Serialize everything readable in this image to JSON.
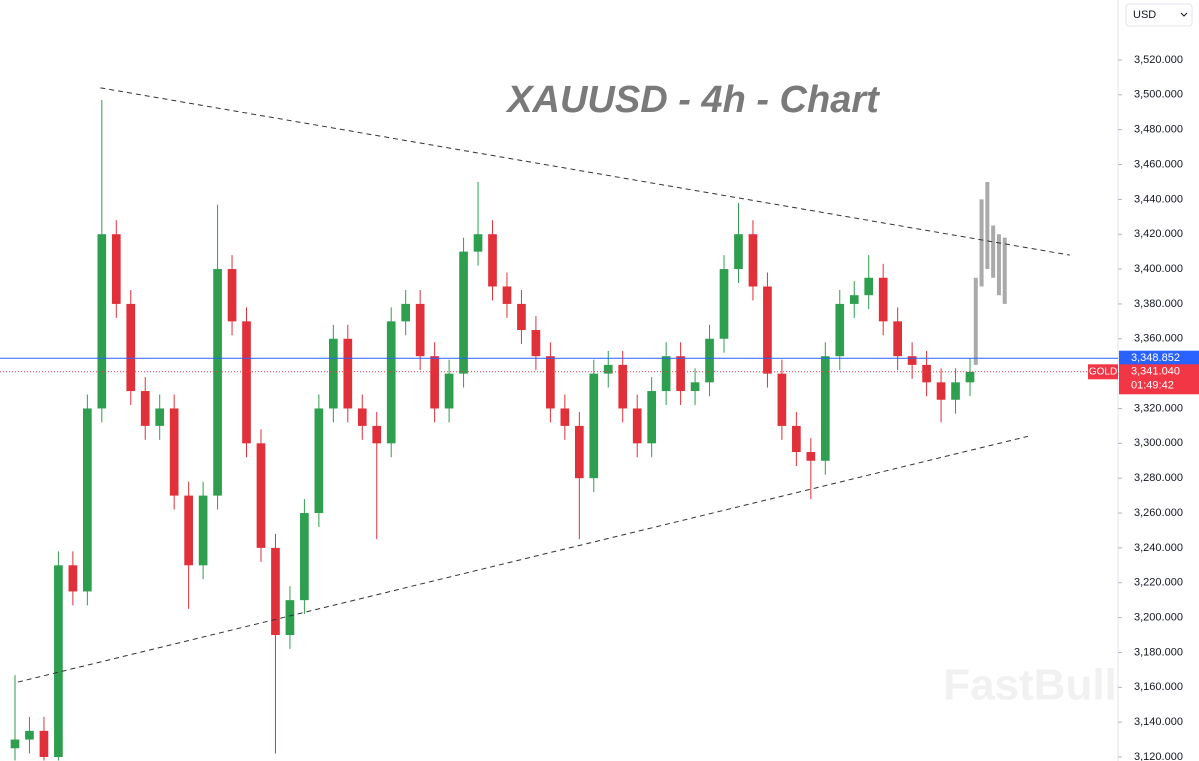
{
  "chart_data": {
    "type": "candlestick",
    "title": "XAUUSD - 4h - Chart",
    "watermark": "FastBull",
    "currency": "USD",
    "up_color": "#2e9e4f",
    "down_color": "#e0303a",
    "ylim": [
      3117.7,
      3554.4
    ],
    "yticks": [
      {
        "value": 3120,
        "label": "3,120.000"
      },
      {
        "value": 3140,
        "label": "3,140.000"
      },
      {
        "value": 3160,
        "label": "3,160.000"
      },
      {
        "value": 3180,
        "label": "3,180.000"
      },
      {
        "value": 3200,
        "label": "3,200.000"
      },
      {
        "value": 3220,
        "label": "3,220.000"
      },
      {
        "value": 3240,
        "label": "3,240.000"
      },
      {
        "value": 3260,
        "label": "3,260.000"
      },
      {
        "value": 3280,
        "label": "3,280.000"
      },
      {
        "value": 3300,
        "label": "3,300.000"
      },
      {
        "value": 3320,
        "label": "3,320.000"
      },
      {
        "value": 3340,
        "label": "3,340.000"
      },
      {
        "value": 3360,
        "label": "3,360.000"
      },
      {
        "value": 3380,
        "label": "3,380.000"
      },
      {
        "value": 3400,
        "label": "3,400.000"
      },
      {
        "value": 3420,
        "label": "3,420.000"
      },
      {
        "value": 3440,
        "label": "3,440.000"
      },
      {
        "value": 3460,
        "label": "3,460.000"
      },
      {
        "value": 3480,
        "label": "3,480.000"
      },
      {
        "value": 3500,
        "label": "3,500.000"
      },
      {
        "value": 3520,
        "label": "3,520.000"
      }
    ],
    "open": [
      3125,
      3130,
      3135,
      3120,
      3230,
      3215,
      3320,
      3420,
      3380,
      3330,
      3310,
      3320,
      3270,
      3230,
      3270,
      3400,
      3370,
      3300,
      3240,
      3190,
      3210,
      3260,
      3320,
      3360,
      3320,
      3310,
      3300,
      3370,
      3380,
      3350,
      3320,
      3340,
      3410,
      3420,
      3390,
      3380,
      3365,
      3350,
      3320,
      3310,
      3280,
      3340,
      3345,
      3320,
      3300,
      3330,
      3350,
      3330,
      3335,
      3360,
      3400,
      3420,
      3390,
      3340,
      3310,
      3295,
      3290,
      3350,
      3380,
      3385,
      3395,
      3370,
      3350,
      3345,
      3335,
      3325,
      3335
    ],
    "high": [
      3167,
      3143,
      3143,
      3238,
      3238,
      3328,
      3497,
      3428,
      3388,
      3338,
      3328,
      3328,
      3278,
      3278,
      3437,
      3408,
      3378,
      3308,
      3248,
      3218,
      3268,
      3328,
      3368,
      3368,
      3328,
      3318,
      3378,
      3388,
      3388,
      3358,
      3348,
      3418,
      3450,
      3428,
      3398,
      3388,
      3373,
      3358,
      3328,
      3318,
      3348,
      3353,
      3353,
      3328,
      3338,
      3358,
      3358,
      3343,
      3368,
      3408,
      3438,
      3428,
      3398,
      3348,
      3318,
      3303,
      3358,
      3388,
      3393,
      3408,
      3403,
      3378,
      3358,
      3353,
      3343,
      3343,
      3349
    ],
    "low": [
      3118,
      3122,
      3118,
      3118,
      3207,
      3207,
      3312,
      3372,
      3322,
      3302,
      3302,
      3262,
      3205,
      3222,
      3262,
      3362,
      3292,
      3232,
      3122,
      3182,
      3202,
      3252,
      3312,
      3312,
      3302,
      3245,
      3292,
      3362,
      3342,
      3312,
      3312,
      3332,
      3402,
      3382,
      3372,
      3357,
      3342,
      3312,
      3302,
      3245,
      3272,
      3332,
      3312,
      3292,
      3292,
      3322,
      3322,
      3322,
      3327,
      3352,
      3392,
      3382,
      3332,
      3302,
      3287,
      3268,
      3282,
      3342,
      3372,
      3377,
      3362,
      3342,
      3337,
      3327,
      3312,
      3317,
      3327
    ],
    "close": [
      3130,
      3135,
      3120,
      3230,
      3215,
      3320,
      3420,
      3380,
      3330,
      3310,
      3320,
      3270,
      3230,
      3270,
      3400,
      3370,
      3300,
      3240,
      3190,
      3210,
      3260,
      3320,
      3360,
      3320,
      3310,
      3300,
      3370,
      3380,
      3350,
      3320,
      3340,
      3410,
      3420,
      3390,
      3380,
      3365,
      3350,
      3320,
      3310,
      3280,
      3340,
      3345,
      3320,
      3300,
      3330,
      3350,
      3330,
      3335,
      3360,
      3400,
      3420,
      3390,
      3340,
      3310,
      3295,
      3290,
      3350,
      3380,
      3385,
      3395,
      3370,
      3350,
      3345,
      3335,
      3325,
      3335,
      3341
    ],
    "projection": {
      "color": "#aaaaaa",
      "high": [
        3395,
        3440,
        3450,
        3425,
        3420,
        3418
      ],
      "low": [
        3345,
        3390,
        3400,
        3395,
        3385,
        3380
      ]
    },
    "trendlines": [
      {
        "x": [
          5.9,
          72.9
        ],
        "y": [
          3504,
          3408
        ]
      },
      {
        "x": [
          0.2,
          70.0
        ],
        "y": [
          3163,
          3304
        ]
      }
    ],
    "price_lines": [
      {
        "value": 3348.852,
        "label": "3,348.852",
        "color": "#2962ff"
      },
      {
        "value": 3341.04,
        "label": "3,341.040",
        "color": "#f23645",
        "symbol": "GOLD",
        "countdown": "01:49:42"
      }
    ]
  }
}
